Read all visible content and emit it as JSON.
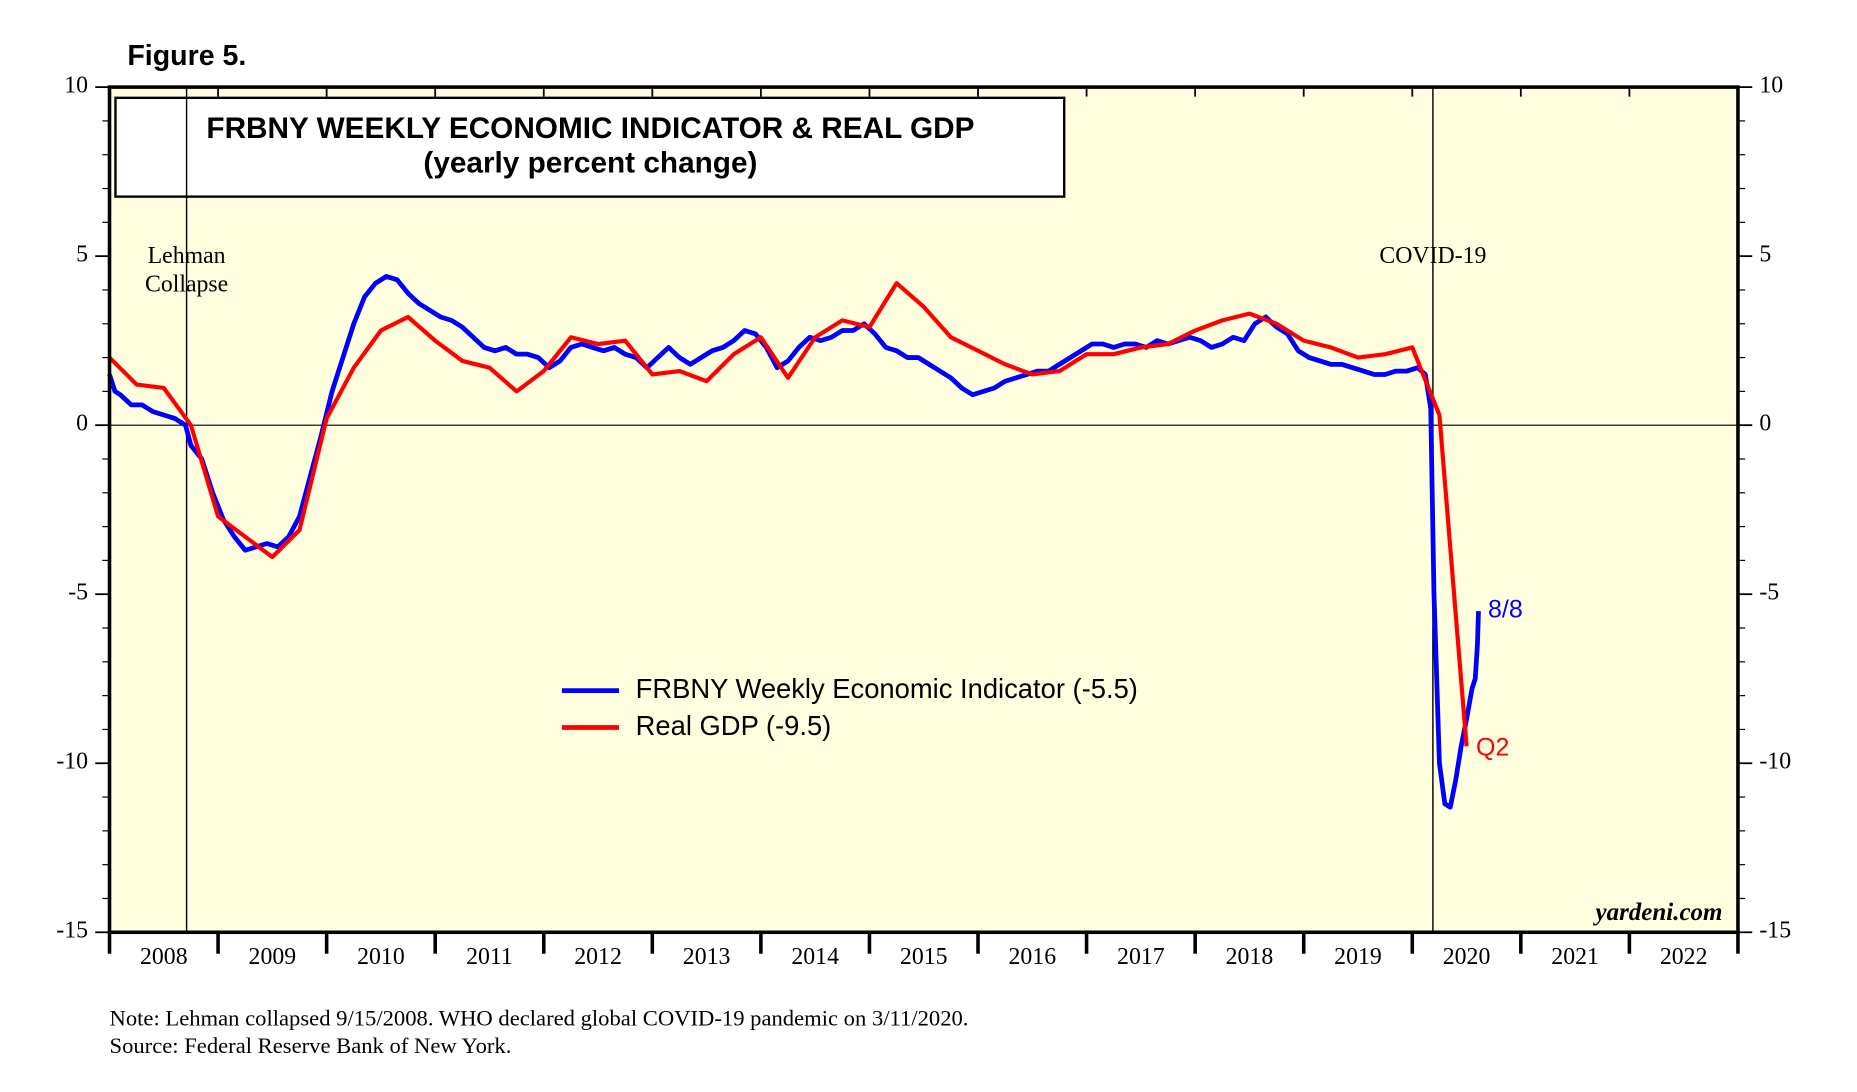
{
  "figure_label": "Figure 5.",
  "chart_data": {
    "type": "line",
    "title": [
      "FRBNY WEEKLY ECONOMIC INDICATOR & REAL GDP",
      "(yearly percent change)"
    ],
    "xlim": [
      2008,
      2023
    ],
    "xticks": [
      2008,
      2009,
      2010,
      2011,
      2012,
      2013,
      2014,
      2015,
      2016,
      2017,
      2018,
      2019,
      2020,
      2021,
      2022,
      2023
    ],
    "x_tick_labels": [
      {
        "value": 2008.5,
        "label": "2008"
      },
      {
        "value": 2009.5,
        "label": "2009"
      },
      {
        "value": 2010.5,
        "label": "2010"
      },
      {
        "value": 2011.5,
        "label": "2011"
      },
      {
        "value": 2012.5,
        "label": "2012"
      },
      {
        "value": 2013.5,
        "label": "2013"
      },
      {
        "value": 2014.5,
        "label": "2014"
      },
      {
        "value": 2015.5,
        "label": "2015"
      },
      {
        "value": 2016.5,
        "label": "2016"
      },
      {
        "value": 2017.5,
        "label": "2017"
      },
      {
        "value": 2018.5,
        "label": "2018"
      },
      {
        "value": 2019.5,
        "label": "2019"
      },
      {
        "value": 2020.5,
        "label": "2020"
      },
      {
        "value": 2021.5,
        "label": "2021"
      },
      {
        "value": 2022.5,
        "label": "2022"
      }
    ],
    "ylim": [
      -15,
      10
    ],
    "yticks": [
      -15,
      -10,
      -5,
      0,
      5,
      10
    ],
    "yminorticks": [
      -14,
      -13,
      -12,
      -11,
      -9,
      -8,
      -7,
      -6,
      -4,
      -3,
      -2,
      -1,
      1,
      2,
      3,
      4,
      6,
      7,
      8,
      9
    ],
    "zero_line": true,
    "event_lines": [
      {
        "x": 2008.71,
        "label": [
          "Lehman",
          "Collapse"
        ]
      },
      {
        "x": 2020.19,
        "label": [
          "COVID-19"
        ]
      }
    ],
    "series": [
      {
        "name": "FRBNY Weekly Economic Indicator (-5.5)",
        "color": "#0000ff",
        "end_label": "8/8",
        "x": [
          2008.0,
          2008.05,
          2008.1,
          2008.2,
          2008.3,
          2008.4,
          2008.5,
          2008.6,
          2008.7,
          2008.75,
          2008.85,
          2008.95,
          2009.05,
          2009.15,
          2009.25,
          2009.35,
          2009.45,
          2009.55,
          2009.65,
          2009.75,
          2009.85,
          2009.95,
          2010.05,
          2010.15,
          2010.25,
          2010.35,
          2010.45,
          2010.55,
          2010.65,
          2010.75,
          2010.85,
          2010.95,
          2011.05,
          2011.15,
          2011.25,
          2011.35,
          2011.45,
          2011.55,
          2011.65,
          2011.75,
          2011.85,
          2011.95,
          2012.05,
          2012.15,
          2012.25,
          2012.35,
          2012.45,
          2012.55,
          2012.65,
          2012.75,
          2012.85,
          2012.95,
          2013.05,
          2013.15,
          2013.25,
          2013.35,
          2013.45,
          2013.55,
          2013.65,
          2013.75,
          2013.85,
          2013.95,
          2014.05,
          2014.15,
          2014.25,
          2014.35,
          2014.45,
          2014.55,
          2014.65,
          2014.75,
          2014.85,
          2014.95,
          2015.05,
          2015.15,
          2015.25,
          2015.35,
          2015.45,
          2015.55,
          2015.65,
          2015.75,
          2015.85,
          2015.95,
          2016.05,
          2016.15,
          2016.25,
          2016.35,
          2016.45,
          2016.55,
          2016.65,
          2016.75,
          2016.85,
          2016.95,
          2017.05,
          2017.15,
          2017.25,
          2017.35,
          2017.45,
          2017.55,
          2017.65,
          2017.75,
          2017.85,
          2017.95,
          2018.05,
          2018.15,
          2018.25,
          2018.35,
          2018.45,
          2018.55,
          2018.65,
          2018.75,
          2018.85,
          2018.95,
          2019.05,
          2019.15,
          2019.25,
          2019.35,
          2019.45,
          2019.55,
          2019.65,
          2019.75,
          2019.85,
          2019.95,
          2020.05,
          2020.12,
          2020.17,
          2020.2,
          2020.25,
          2020.3,
          2020.35,
          2020.4,
          2020.45,
          2020.5,
          2020.55,
          2020.58,
          2020.6,
          2020.61
        ],
        "values": [
          1.5,
          1.0,
          0.9,
          0.6,
          0.6,
          0.4,
          0.3,
          0.2,
          0.0,
          -0.6,
          -1.0,
          -2.0,
          -2.8,
          -3.3,
          -3.7,
          -3.6,
          -3.5,
          -3.6,
          -3.3,
          -2.7,
          -1.5,
          -0.3,
          1.0,
          2.0,
          3.0,
          3.8,
          4.2,
          4.4,
          4.3,
          3.9,
          3.6,
          3.4,
          3.2,
          3.1,
          2.9,
          2.6,
          2.3,
          2.2,
          2.3,
          2.1,
          2.1,
          2.0,
          1.7,
          1.9,
          2.3,
          2.4,
          2.3,
          2.2,
          2.3,
          2.1,
          2.0,
          1.7,
          2.0,
          2.3,
          2.0,
          1.8,
          2.0,
          2.2,
          2.3,
          2.5,
          2.8,
          2.7,
          2.3,
          1.7,
          1.9,
          2.3,
          2.6,
          2.5,
          2.6,
          2.8,
          2.8,
          3.0,
          2.7,
          2.3,
          2.2,
          2.0,
          2.0,
          1.8,
          1.6,
          1.4,
          1.1,
          0.9,
          1.0,
          1.1,
          1.3,
          1.4,
          1.5,
          1.6,
          1.6,
          1.8,
          2.0,
          2.2,
          2.4,
          2.4,
          2.3,
          2.4,
          2.4,
          2.3,
          2.5,
          2.4,
          2.5,
          2.6,
          2.5,
          2.3,
          2.4,
          2.6,
          2.5,
          3.0,
          3.2,
          2.9,
          2.7,
          2.2,
          2.0,
          1.9,
          1.8,
          1.8,
          1.7,
          1.6,
          1.5,
          1.5,
          1.6,
          1.6,
          1.7,
          1.5,
          0.5,
          -5.0,
          -10.0,
          -11.2,
          -11.3,
          -10.5,
          -9.5,
          -8.7,
          -7.8,
          -7.5,
          -6.5,
          -5.5
        ]
      },
      {
        "name": "Real GDP (-9.5)",
        "color": "#ff0000",
        "end_label": "Q2",
        "x": [
          2008.0,
          2008.25,
          2008.5,
          2008.75,
          2009.0,
          2009.25,
          2009.5,
          2009.75,
          2010.0,
          2010.25,
          2010.5,
          2010.75,
          2011.0,
          2011.25,
          2011.5,
          2011.75,
          2012.0,
          2012.25,
          2012.5,
          2012.75,
          2013.0,
          2013.25,
          2013.5,
          2013.75,
          2014.0,
          2014.25,
          2014.5,
          2014.75,
          2015.0,
          2015.25,
          2015.5,
          2015.75,
          2016.0,
          2016.25,
          2016.5,
          2016.75,
          2017.0,
          2017.25,
          2017.5,
          2017.75,
          2018.0,
          2018.25,
          2018.5,
          2018.75,
          2019.0,
          2019.25,
          2019.5,
          2019.75,
          2020.0,
          2020.25,
          2020.5
        ],
        "values": [
          2.0,
          1.2,
          1.1,
          0.0,
          -2.7,
          -3.3,
          -3.9,
          -3.1,
          0.2,
          1.7,
          2.8,
          3.2,
          2.5,
          1.9,
          1.7,
          1.0,
          1.6,
          2.6,
          2.4,
          2.5,
          1.5,
          1.6,
          1.3,
          2.1,
          2.6,
          1.4,
          2.6,
          3.1,
          2.9,
          4.2,
          3.5,
          2.6,
          2.2,
          1.8,
          1.5,
          1.6,
          2.1,
          2.1,
          2.3,
          2.4,
          2.8,
          3.1,
          3.3,
          3.0,
          2.5,
          2.3,
          2.0,
          2.1,
          2.3,
          0.3,
          -9.5
        ]
      }
    ],
    "watermark": "yardeni.com"
  },
  "notes": [
    "Note: Lehman collapsed 9/15/2008. WHO declared global COVID-19 pandemic on 3/11/2020.",
    "Source: Federal Reserve Bank of New York."
  ]
}
